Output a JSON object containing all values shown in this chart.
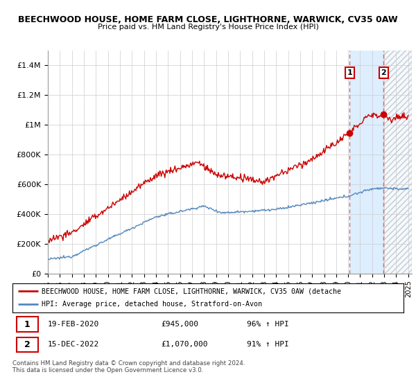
{
  "title_line1": "BEECHWOOD HOUSE, HOME FARM CLOSE, LIGHTHORNE, WARWICK, CV35 0AW",
  "title_line2": "Price paid vs. HM Land Registry's House Price Index (HPI)",
  "ylabel_ticks": [
    "£0",
    "£200K",
    "£400K",
    "£600K",
    "£800K",
    "£1M",
    "£1.2M",
    "£1.4M"
  ],
  "ytick_values": [
    0,
    200000,
    400000,
    600000,
    800000,
    1000000,
    1200000,
    1400000
  ],
  "ylim": [
    0,
    1500000
  ],
  "xlim_start": 1995,
  "xlim_end": 2025.3,
  "hpi_color": "#5588bb",
  "price_color": "#cc0000",
  "shade_color": "#ddeeff",
  "hatch_color": "#cccccc",
  "marker1_year": 2020.13,
  "marker2_year": 2022.96,
  "marker1_price": 945000,
  "marker2_price": 1070000,
  "legend_line1": "BEECHWOOD HOUSE, HOME FARM CLOSE, LIGHTHORNE, WARWICK, CV35 0AW (detache",
  "legend_line2": "HPI: Average price, detached house, Stratford-on-Avon",
  "footer": "Contains HM Land Registry data © Crown copyright and database right 2024.\nThis data is licensed under the Open Government Licence v3.0."
}
